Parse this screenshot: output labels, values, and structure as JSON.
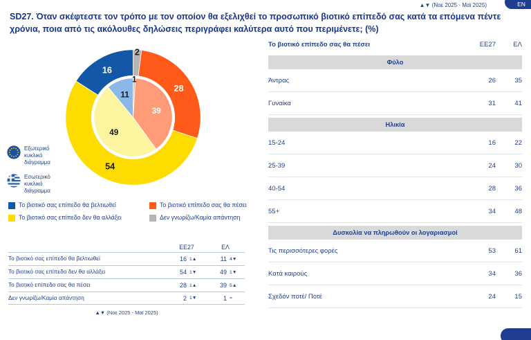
{
  "page": {
    "title": "SD27. Όταν σκέφτεστε τον τρόπο με τον οποίον θα εξελιχθεί το προσωπικό βιοτικό επίπεδό σας κατά τα επόμενα πέντε χρόνια, ποια από τις ακόλουθες δηλώσεις περιγράφει καλύτερα αυτό που περιμένετε; (%)",
    "trend_note_top": "▲▼ (Νοε 2025 - Μαϊ 2025)",
    "lang_button": "EN"
  },
  "chart_data": {
    "type": "pie",
    "title": "",
    "categories": [
      "Δεν γνωρίζω/Καμία απάντηση",
      "Το βιοτικό επίπεδο σας θα πέσει",
      "Το βιοτικό σας επίπεδο δεν θα αλλάξει",
      "Το βιοτικό σας επίπεδο θα βελτιωθεί"
    ],
    "series": [
      {
        "name": "ΕΕ27",
        "ring": "outer",
        "values": [
          2,
          28,
          54,
          16
        ],
        "colors": [
          "#b5b5b5",
          "#ff5a19",
          "#ffdc00",
          "#1258a6"
        ],
        "label_colors": [
          "#1a1a1a",
          "#ffffff",
          "#1a1a1a",
          "#ffffff"
        ]
      },
      {
        "name": "ΕΛ",
        "ring": "inner",
        "values": [
          1,
          39,
          49,
          11
        ],
        "colors": [
          "#c9c9c9",
          "#ff9b77",
          "#fcf49f",
          "#8bb8e8"
        ],
        "label_colors": [
          "#1a1a1a",
          "#ffffff",
          "#1a1a1a",
          "#1a1a1a"
        ]
      }
    ],
    "start_angle_deg": 0,
    "direction": "clockwise"
  },
  "ring_legend": {
    "outer_label": "Εξωτερικό κυκλικό διάγραμμα",
    "inner_label": "Εσωτερικό κυκλικό διάγραμμα"
  },
  "category_legend": [
    {
      "label": "Το βιοτικό σας επίπεδο θα βελτιωθεί",
      "color": "#1258a6"
    },
    {
      "label": "Το βιοτικό επίπεδο σας θα πέσει",
      "color": "#ff5a19"
    },
    {
      "label": "Το βιοτικό σας επίπεδο δεν θα αλλάξει",
      "color": "#ffdc00"
    },
    {
      "label": "Δεν γνωρίζω/Καμία απάντηση",
      "color": "#b5b5b5"
    }
  ],
  "summary_table": {
    "col1": "ΕΕ27",
    "col2": "ΕΛ",
    "rows": [
      {
        "label": "Το βιοτικό σας επίπεδο θα βελτιωθεί",
        "ee27": "16",
        "ee27_change": "1▲",
        "el": "11",
        "el_change": "4▼"
      },
      {
        "label": "Το βιοτικό σας επίπεδο δεν θα αλλάξει",
        "ee27": "54",
        "ee27_change": "1▼",
        "el": "49",
        "el_change": "1▼"
      },
      {
        "label": "Το βιοτικό επίπεδο σας θα πέσει",
        "ee27": "28",
        "ee27_change": "1▲",
        "el": "39",
        "el_change": "5▲"
      },
      {
        "label": "Δεν γνωρίζω/Καμία απάντηση",
        "ee27": "2",
        "ee27_change": "1▼",
        "el": "1",
        "el_change": "="
      }
    ],
    "footnote": "▲▼ (Νοε 2025 - Μαϊ 2025)"
  },
  "right_table": {
    "title": "Το βιοτικό επίπεδο σας θα πέσει",
    "col1": "ΕΕ27",
    "col2": "ΕΛ",
    "sections": [
      {
        "title": "Φύλο",
        "rows": [
          {
            "label": "Άντρας",
            "ee27": "26",
            "el": "35"
          },
          {
            "label": "Γυναίκα",
            "ee27": "31",
            "el": "41"
          }
        ]
      },
      {
        "title": "Ηλικία",
        "rows": [
          {
            "label": "15-24",
            "ee27": "16",
            "el": "22"
          },
          {
            "label": "25-39",
            "ee27": "24",
            "el": "30"
          },
          {
            "label": "40-54",
            "ee27": "28",
            "el": "36"
          },
          {
            "label": "55+",
            "ee27": "34",
            "el": "48"
          }
        ]
      },
      {
        "title": "Δυσκολία να πληρωθούν οι λογαριασμοί",
        "rows": [
          {
            "label": "Τις περισσότερες φορές",
            "ee27": "53",
            "el": "61"
          },
          {
            "label": "Κατά καιρούς",
            "ee27": "34",
            "el": "36"
          },
          {
            "label": "Σχεδόν ποτέ/ Ποτέ",
            "ee27": "24",
            "el": "15"
          }
        ]
      }
    ]
  }
}
